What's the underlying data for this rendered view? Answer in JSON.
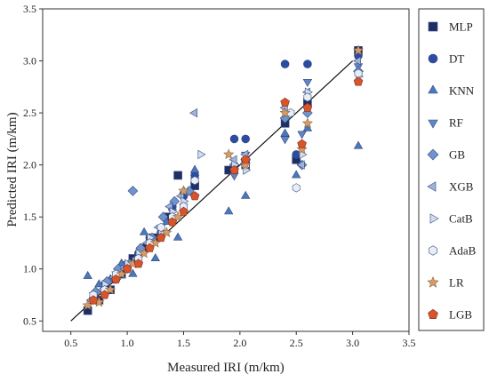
{
  "chart_data": {
    "type": "scatter",
    "title": "",
    "xlabel": "Measured IRI (m/km)",
    "ylabel": "Predicted IRI (m/km)",
    "xlim": [
      0.25,
      3.5
    ],
    "ylim": [
      0.4,
      3.5
    ],
    "xticks": [
      "0.5",
      "1.0",
      "1.5",
      "2.0",
      "2.5",
      "3.0",
      "3.5"
    ],
    "yticks": [
      "0.5",
      "1.0",
      "1.5",
      "2.0",
      "2.5",
      "3.0",
      "3.5"
    ],
    "grid": false,
    "legend_position": "right-outside",
    "reference_line": [
      [
        0.5,
        0.5
      ],
      [
        3.0,
        3.0
      ]
    ],
    "series": [
      {
        "name": "MLP",
        "marker": "square",
        "color": "#1f2f66",
        "points": [
          [
            0.65,
            0.6
          ],
          [
            0.75,
            0.7
          ],
          [
            0.85,
            0.8
          ],
          [
            0.95,
            0.95
          ],
          [
            1.05,
            1.1
          ],
          [
            1.15,
            1.2
          ],
          [
            1.25,
            1.3
          ],
          [
            1.35,
            1.5
          ],
          [
            1.45,
            1.9
          ],
          [
            1.6,
            1.8
          ],
          [
            1.9,
            1.95
          ],
          [
            2.05,
            2.0
          ],
          [
            2.4,
            2.4
          ],
          [
            2.5,
            2.05
          ],
          [
            2.6,
            2.6
          ],
          [
            3.05,
            3.1
          ]
        ]
      },
      {
        "name": "DT",
        "marker": "circle",
        "color": "#2a4da3",
        "points": [
          [
            0.7,
            0.72
          ],
          [
            0.8,
            0.85
          ],
          [
            0.9,
            0.9
          ],
          [
            1.0,
            1.0
          ],
          [
            1.1,
            1.15
          ],
          [
            1.2,
            1.3
          ],
          [
            1.3,
            1.35
          ],
          [
            1.4,
            1.6
          ],
          [
            1.5,
            1.7
          ],
          [
            1.6,
            1.9
          ],
          [
            1.95,
            2.25
          ],
          [
            2.05,
            2.25
          ],
          [
            2.4,
            2.97
          ],
          [
            2.6,
            2.97
          ],
          [
            2.5,
            2.1
          ],
          [
            3.05,
            3.05
          ]
        ]
      },
      {
        "name": "KNN",
        "marker": "triangle-up",
        "color": "#4a78bd",
        "points": [
          [
            0.65,
            0.93
          ],
          [
            0.75,
            0.85
          ],
          [
            0.85,
            0.9
          ],
          [
            0.95,
            1.05
          ],
          [
            1.05,
            0.95
          ],
          [
            1.15,
            1.35
          ],
          [
            1.25,
            1.1
          ],
          [
            1.35,
            1.45
          ],
          [
            1.45,
            1.3
          ],
          [
            1.5,
            1.75
          ],
          [
            1.6,
            1.95
          ],
          [
            1.9,
            1.55
          ],
          [
            2.05,
            1.7
          ],
          [
            2.4,
            2.3
          ],
          [
            2.6,
            2.35
          ],
          [
            2.5,
            1.9
          ],
          [
            3.05,
            2.18
          ]
        ]
      },
      {
        "name": "RF",
        "marker": "triangle-down",
        "color": "#5f86c8",
        "points": [
          [
            0.7,
            0.75
          ],
          [
            0.8,
            0.8
          ],
          [
            0.9,
            0.95
          ],
          [
            1.0,
            1.05
          ],
          [
            1.1,
            1.1
          ],
          [
            1.2,
            1.25
          ],
          [
            1.3,
            1.4
          ],
          [
            1.4,
            1.55
          ],
          [
            1.5,
            1.6
          ],
          [
            1.6,
            1.85
          ],
          [
            1.95,
            1.9
          ],
          [
            2.05,
            2.1
          ],
          [
            2.4,
            2.25
          ],
          [
            2.55,
            2.3
          ],
          [
            2.6,
            2.8
          ],
          [
            3.05,
            2.95
          ]
        ]
      },
      {
        "name": "GB",
        "marker": "diamond",
        "color": "#6d94cc",
        "points": [
          [
            0.72,
            0.78
          ],
          [
            0.82,
            0.88
          ],
          [
            0.92,
            1.0
          ],
          [
            1.02,
            1.05
          ],
          [
            1.05,
            1.75
          ],
          [
            1.12,
            1.2
          ],
          [
            1.22,
            1.3
          ],
          [
            1.32,
            1.5
          ],
          [
            1.42,
            1.65
          ],
          [
            1.55,
            1.75
          ],
          [
            1.95,
            2.0
          ],
          [
            2.05,
            2.05
          ],
          [
            2.4,
            2.45
          ],
          [
            2.55,
            2.0
          ],
          [
            2.6,
            2.5
          ],
          [
            3.05,
            2.9
          ]
        ]
      },
      {
        "name": "XGB",
        "marker": "triangle-left",
        "color": "#9fb3dc",
        "points": [
          [
            0.68,
            0.7
          ],
          [
            0.78,
            0.8
          ],
          [
            0.88,
            0.92
          ],
          [
            0.98,
            1.0
          ],
          [
            1.08,
            1.1
          ],
          [
            1.18,
            1.25
          ],
          [
            1.28,
            1.4
          ],
          [
            1.38,
            1.6
          ],
          [
            1.48,
            1.7
          ],
          [
            1.6,
            2.5
          ],
          [
            1.95,
            2.05
          ],
          [
            2.05,
            2.1
          ],
          [
            2.4,
            2.55
          ],
          [
            2.55,
            2.0
          ],
          [
            2.6,
            2.7
          ],
          [
            3.05,
            3.0
          ]
        ]
      },
      {
        "name": "CatB",
        "marker": "triangle-right",
        "color": "#d0dcf0",
        "points": [
          [
            0.7,
            0.72
          ],
          [
            0.8,
            0.85
          ],
          [
            0.9,
            0.9
          ],
          [
            1.0,
            1.05
          ],
          [
            1.1,
            1.15
          ],
          [
            1.2,
            1.3
          ],
          [
            1.3,
            1.35
          ],
          [
            1.4,
            1.55
          ],
          [
            1.5,
            1.65
          ],
          [
            1.65,
            2.1
          ],
          [
            1.95,
            2.0
          ],
          [
            2.05,
            1.95
          ],
          [
            2.4,
            2.5
          ],
          [
            2.55,
            2.1
          ],
          [
            2.6,
            2.7
          ],
          [
            3.05,
            2.85
          ]
        ]
      },
      {
        "name": "AdaB",
        "marker": "hexagon",
        "color": "#e8eef9",
        "points": [
          [
            0.7,
            0.75
          ],
          [
            0.8,
            0.8
          ],
          [
            0.9,
            0.95
          ],
          [
            1.0,
            1.0
          ],
          [
            1.1,
            1.1
          ],
          [
            1.2,
            1.25
          ],
          [
            1.3,
            1.4
          ],
          [
            1.4,
            1.5
          ],
          [
            1.5,
            1.6
          ],
          [
            1.6,
            1.85
          ],
          [
            1.95,
            1.95
          ],
          [
            2.05,
            2.0
          ],
          [
            2.45,
            2.5
          ],
          [
            2.5,
            1.78
          ],
          [
            2.6,
            2.65
          ],
          [
            3.05,
            2.88
          ]
        ]
      },
      {
        "name": "LR",
        "marker": "star",
        "color": "#d89a6a",
        "points": [
          [
            0.65,
            0.65
          ],
          [
            0.75,
            0.68
          ],
          [
            0.85,
            0.8
          ],
          [
            0.95,
            0.95
          ],
          [
            1.05,
            1.05
          ],
          [
            1.15,
            1.15
          ],
          [
            1.25,
            1.25
          ],
          [
            1.35,
            1.35
          ],
          [
            1.45,
            1.5
          ],
          [
            1.5,
            1.75
          ],
          [
            1.9,
            2.1
          ],
          [
            2.05,
            2.0
          ],
          [
            2.4,
            2.5
          ],
          [
            2.55,
            2.15
          ],
          [
            2.6,
            2.4
          ],
          [
            3.05,
            3.1
          ]
        ]
      },
      {
        "name": "LGB",
        "marker": "pentagon",
        "color": "#d9532b",
        "points": [
          [
            0.7,
            0.7
          ],
          [
            0.8,
            0.75
          ],
          [
            0.9,
            0.9
          ],
          [
            1.0,
            1.0
          ],
          [
            1.1,
            1.05
          ],
          [
            1.2,
            1.2
          ],
          [
            1.3,
            1.3
          ],
          [
            1.4,
            1.45
          ],
          [
            1.5,
            1.55
          ],
          [
            1.6,
            1.7
          ],
          [
            1.95,
            1.95
          ],
          [
            2.05,
            2.05
          ],
          [
            2.4,
            2.6
          ],
          [
            2.55,
            2.2
          ],
          [
            2.6,
            2.55
          ],
          [
            3.05,
            2.8
          ]
        ]
      }
    ]
  }
}
